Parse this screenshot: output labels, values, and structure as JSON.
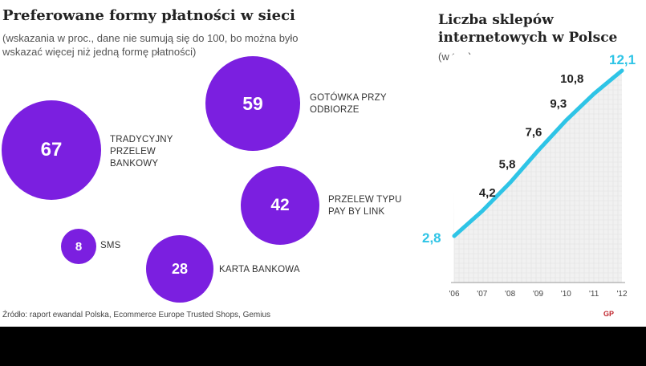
{
  "left_panel": {
    "title": "Preferowane formy płatności w sieci",
    "subtitle": "(wskazania w proc., dane nie sumują się do 100, bo można było wskazać więcej niż jedną formę płatności)"
  },
  "right_panel": {
    "title": "Liczba sklepów internetowych w Polsce",
    "subtitle": "(w tys.)"
  },
  "source": "Źródło: raport ewandal Polska, Ecommerce Europe Trusted Shops, Gemius",
  "logo": "GP",
  "colors": {
    "bubble": "#7B1FE0",
    "line": "#2EC4E6",
    "text": "#222222"
  },
  "chart_data": [
    {
      "type": "bubble",
      "title": "Preferowane formy płatności w sieci",
      "subtitle": "(wskazania w proc., dane nie sumują się do 100, bo można było wskazać więcej niż jedną formę płatności)",
      "items": [
        {
          "label": "TRADYCYJNY PRZELEW BANKOWY",
          "value": 67
        },
        {
          "label": "GOTÓWKA PRZY ODBIORZE",
          "value": 59
        },
        {
          "label": "PRZELEW TYPU PAY BY LINK",
          "value": 42
        },
        {
          "label": "KARTA BANKOWA",
          "value": 28
        },
        {
          "label": "SMS",
          "value": 8
        }
      ]
    },
    {
      "type": "line",
      "title": "Liczba sklepów internetowych w Polsce",
      "ylabel": "(w tys.)",
      "x": [
        "'06",
        "'07",
        "'08",
        "'09",
        "'10",
        "'11",
        "'12"
      ],
      "values": [
        2.8,
        4.2,
        5.8,
        7.6,
        9.3,
        10.8,
        12.1
      ],
      "value_labels": [
        "2,8",
        "4,2",
        "5,8",
        "7,6",
        "9,3",
        "10,8",
        "12,1"
      ],
      "grid": true
    }
  ]
}
